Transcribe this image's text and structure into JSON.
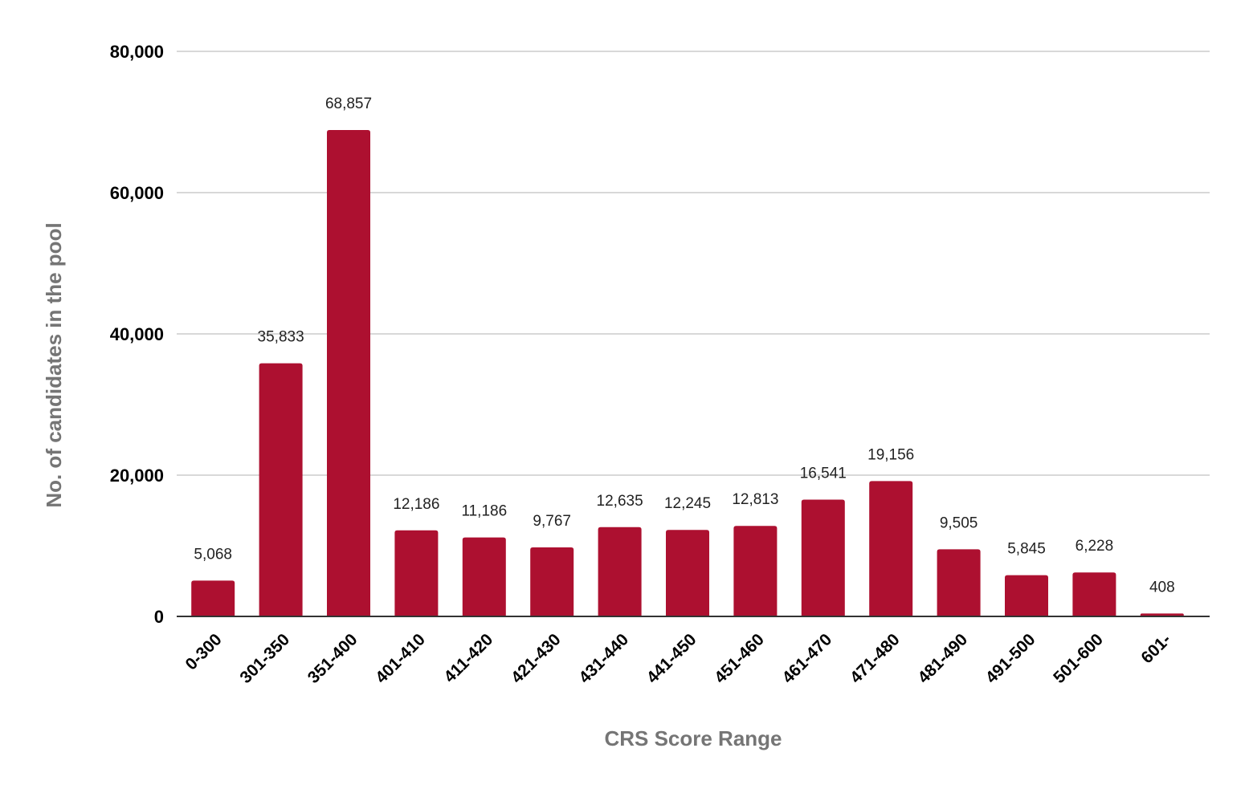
{
  "chart_data": {
    "type": "bar",
    "title": "",
    "xlabel": "CRS Score Range",
    "ylabel": "No. of candidates in the pool",
    "ylim": [
      0,
      80000
    ],
    "yticks": [
      0,
      20000,
      40000,
      60000,
      80000
    ],
    "ytick_labels": [
      "0",
      "20,000",
      "40,000",
      "60,000",
      "80,000"
    ],
    "grid": true,
    "legend": "none",
    "bar_color": "#ad1030",
    "gridline_color": "#cccccc",
    "categories": [
      "0-300",
      "301-350",
      "351-400",
      "401-410",
      "411-420",
      "421-430",
      "431-440",
      "441-450",
      "451-460",
      "461-470",
      "471-480",
      "481-490",
      "491-500",
      "501-600",
      "601-"
    ],
    "values": [
      5068,
      35833,
      68857,
      12186,
      11186,
      9767,
      12635,
      12245,
      12813,
      16541,
      19156,
      9505,
      5845,
      6228,
      408
    ],
    "value_labels": [
      "5,068",
      "35,833",
      "68,857",
      "12,186",
      "11,186",
      "9,767",
      "12,635",
      "12,245",
      "12,813",
      "16,541",
      "19,156",
      "9,505",
      "5,845",
      "6,228",
      "408"
    ]
  }
}
